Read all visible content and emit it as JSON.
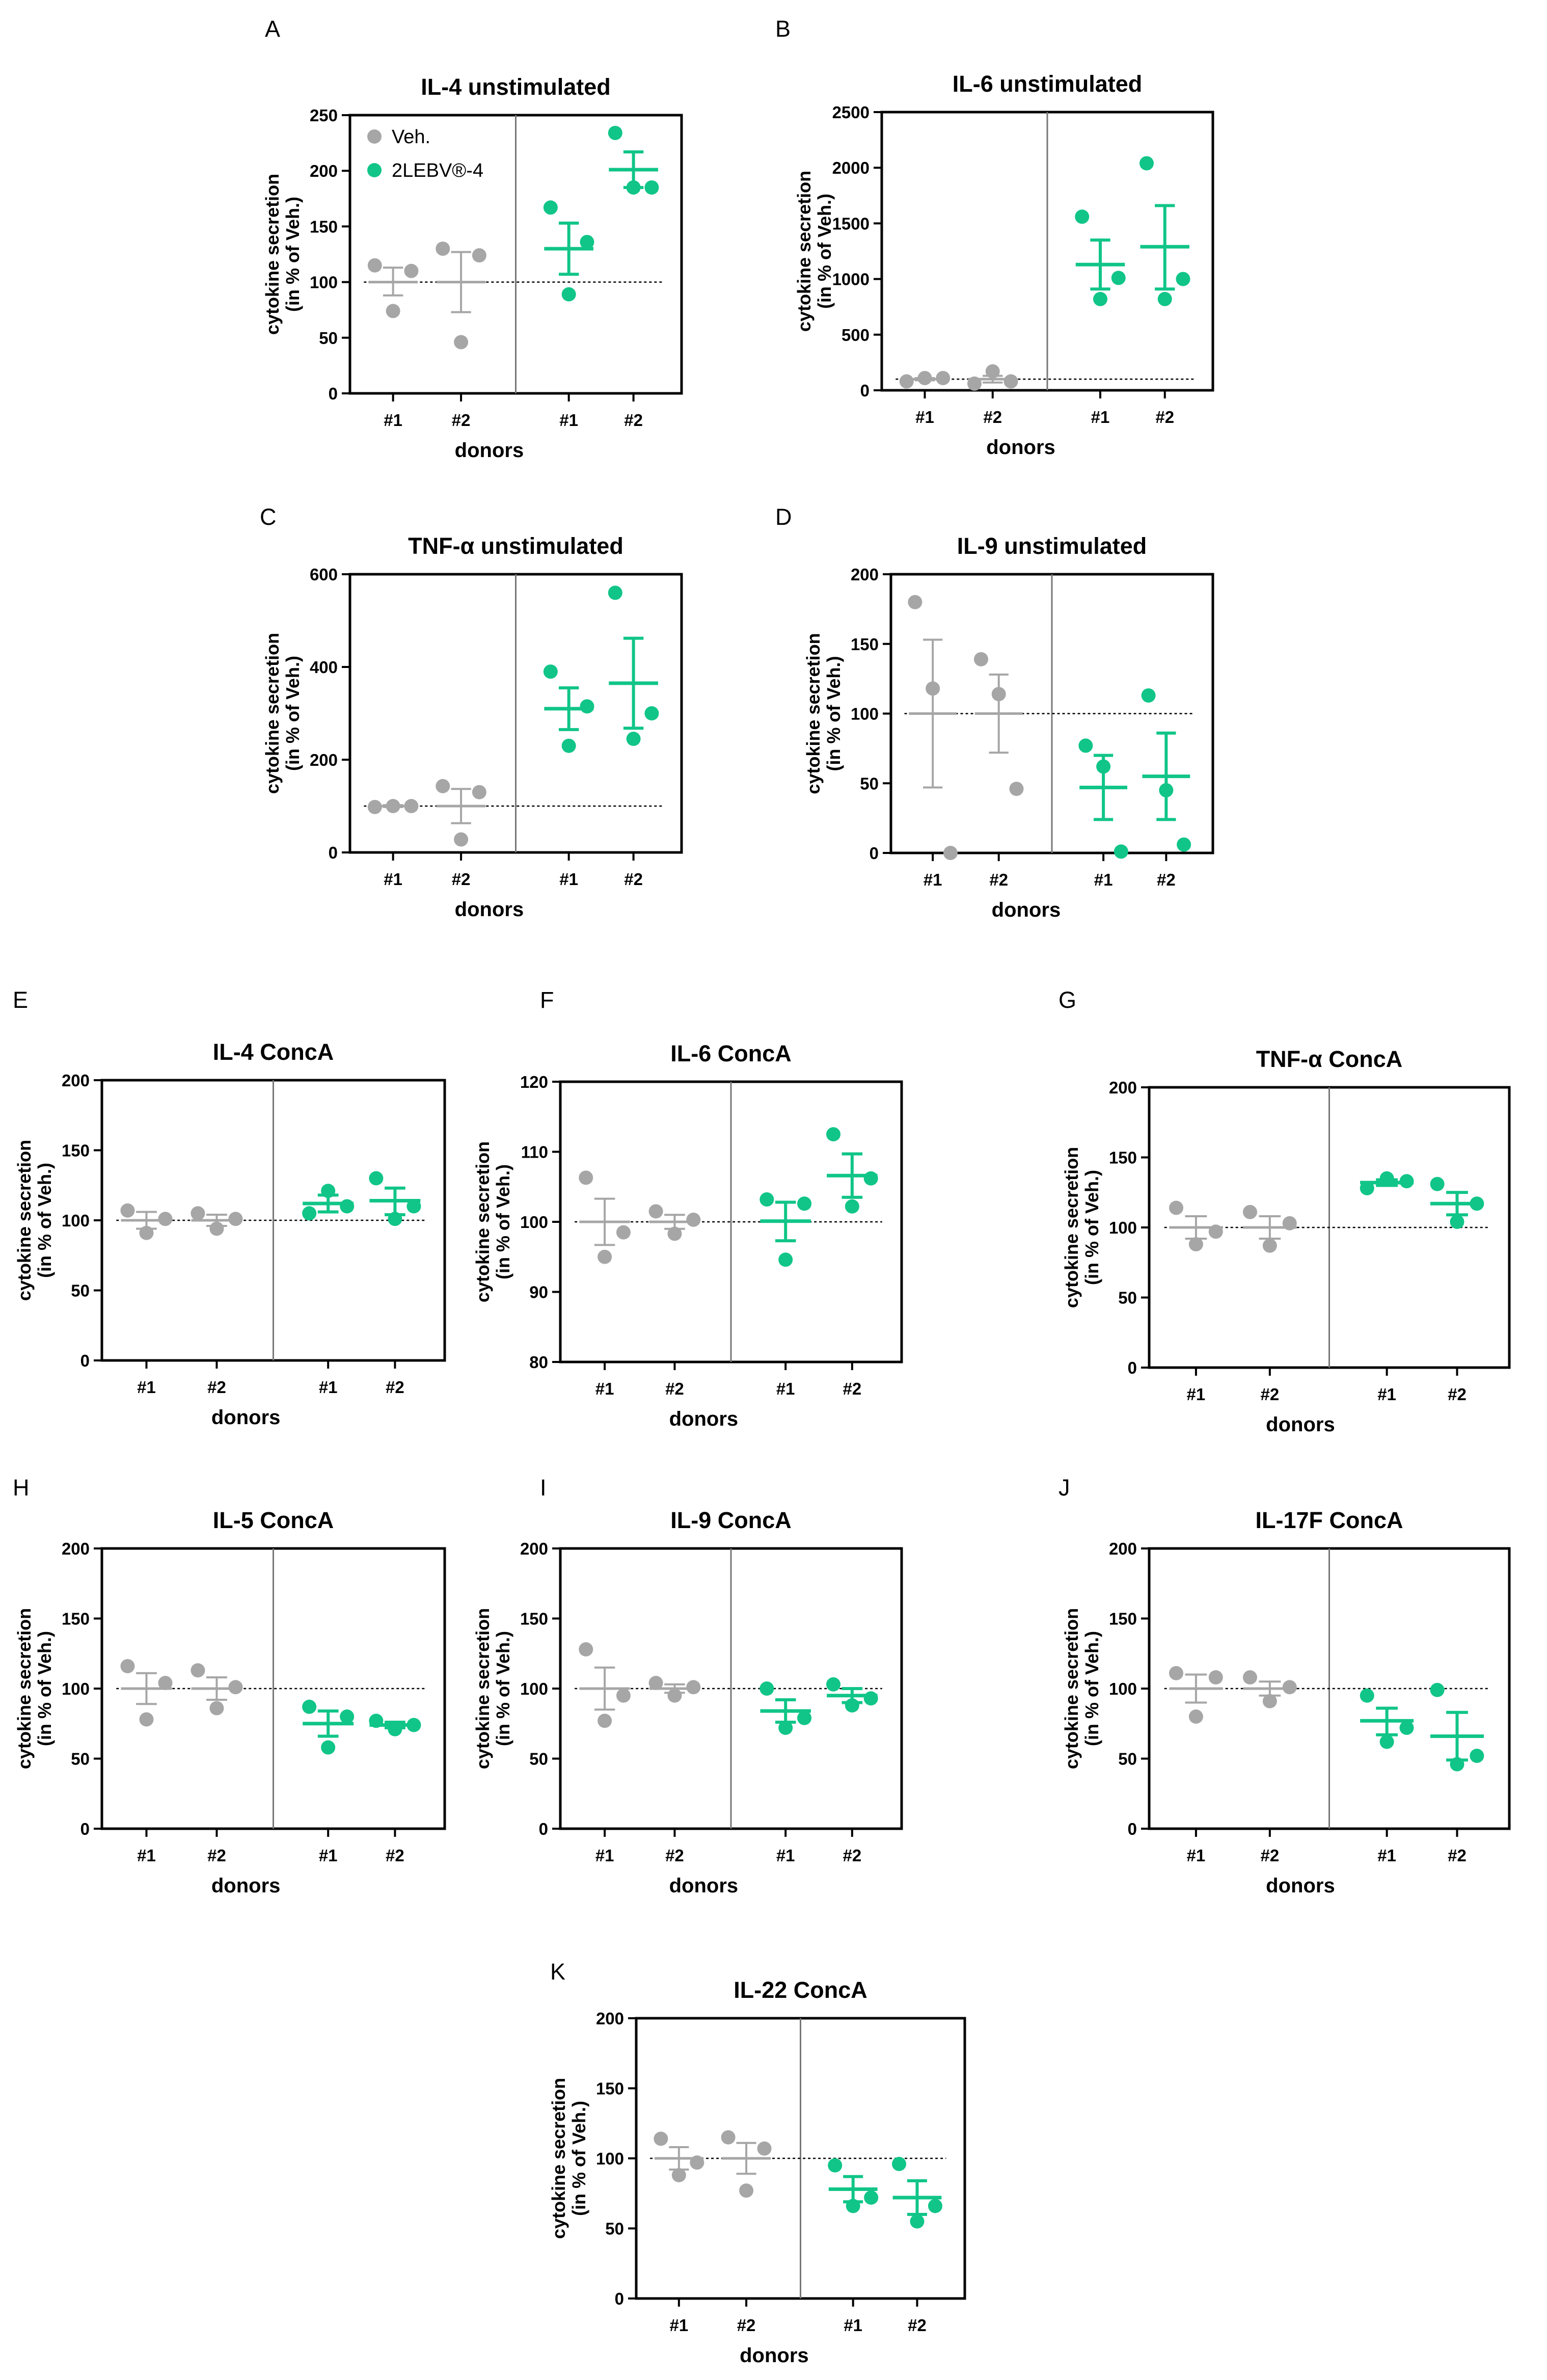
{
  "figure": {
    "legend": {
      "items": [
        {
          "label": "Veh.",
          "color": "#a6a6a6"
        },
        {
          "label": "2LEBV®-4",
          "color": "#10c587"
        }
      ]
    },
    "colors": {
      "veh": "#a6a6a6",
      "treat": "#10c587"
    }
  },
  "chart_data": [
    {
      "panel": "A",
      "type": "scatter",
      "title": "IL-4 unstimulated",
      "ylabel": [
        "cytokine secretion",
        "(in % of Veh.)"
      ],
      "xlabel": "donors",
      "ylim": [
        0,
        250
      ],
      "yticks": [
        0,
        50,
        100,
        150,
        200,
        250
      ],
      "categories": [
        "#1",
        "#2",
        "#1",
        "#2"
      ],
      "has_legend": true,
      "series": [
        {
          "name": "Veh.",
          "groups": [
            {
              "points": [
                115,
                74,
                110
              ],
              "mean": 100,
              "err": [
                88,
                113
              ]
            },
            {
              "points": [
                130,
                46,
                124
              ],
              "mean": 100,
              "err": [
                73,
                127
              ]
            }
          ]
        },
        {
          "name": "2LEBV®-4",
          "groups": [
            {
              "points": [
                167,
                89,
                136
              ],
              "mean": 130,
              "err": [
                107,
                153
              ]
            },
            {
              "points": [
                234,
                185,
                185
              ],
              "mean": 201,
              "err": [
                185,
                217
              ]
            }
          ]
        }
      ]
    },
    {
      "panel": "B",
      "type": "scatter",
      "title": "IL-6 unstimulated",
      "ylabel": [
        "cytokine secretion",
        "(in % of Veh.)"
      ],
      "xlabel": "donors",
      "ylim": [
        0,
        2500
      ],
      "yticks": [
        0,
        500,
        1000,
        1500,
        2000,
        2500
      ],
      "categories": [
        "#1",
        "#2",
        "#1",
        "#2"
      ],
      "series": [
        {
          "name": "Veh.",
          "groups": [
            {
              "points": [
                80,
                110,
                110
              ],
              "mean": 100,
              "err": [
                90,
                110
              ]
            },
            {
              "points": [
                60,
                170,
                80
              ],
              "mean": 100,
              "err": [
                70,
                130
              ]
            }
          ]
        },
        {
          "name": "2LEBV®-4",
          "groups": [
            {
              "points": [
                1560,
                820,
                1010
              ],
              "mean": 1130,
              "err": [
                910,
                1350
              ]
            },
            {
              "points": [
                2040,
                820,
                1000
              ],
              "mean": 1290,
              "err": [
                910,
                1660
              ]
            }
          ]
        }
      ]
    },
    {
      "panel": "C",
      "type": "scatter",
      "title": "TNF-α unstimulated",
      "ylabel": [
        "cytokine secretion",
        "(in % of Veh.)"
      ],
      "xlabel": "donors",
      "ylim": [
        0,
        600
      ],
      "yticks": [
        0,
        200,
        400,
        600
      ],
      "categories": [
        "#1",
        "#2",
        "#1",
        "#2"
      ],
      "series": [
        {
          "name": "Veh.",
          "groups": [
            {
              "points": [
                98,
                100,
                100
              ],
              "mean": 100,
              "err": [
                98,
                102
              ]
            },
            {
              "points": [
                143,
                28,
                130
              ],
              "mean": 100,
              "err": [
                63,
                137
              ]
            }
          ]
        },
        {
          "name": "2LEBV®-4",
          "groups": [
            {
              "points": [
                390,
                230,
                315
              ],
              "mean": 310,
              "err": [
                265,
                355
              ]
            },
            {
              "points": [
                560,
                245,
                300
              ],
              "mean": 365,
              "err": [
                268,
                462
              ]
            }
          ]
        }
      ]
    },
    {
      "panel": "D",
      "type": "scatter",
      "title": "IL-9 unstimulated",
      "ylabel": [
        "cytokine secretion",
        "(in % of Veh.)"
      ],
      "xlabel": "donors",
      "ylim": [
        0,
        200
      ],
      "yticks": [
        0,
        50,
        100,
        150,
        200
      ],
      "categories": [
        "#1",
        "#2",
        "#1",
        "#2"
      ],
      "series": [
        {
          "name": "Veh.",
          "groups": [
            {
              "points": [
                180,
                118,
                0
              ],
              "mean": 100,
              "err": [
                47,
                153
              ]
            },
            {
              "points": [
                139,
                114,
                46
              ],
              "mean": 100,
              "err": [
                72,
                128
              ]
            }
          ]
        },
        {
          "name": "2LEBV®-4",
          "groups": [
            {
              "points": [
                77,
                62,
                1
              ],
              "mean": 47,
              "err": [
                24,
                70
              ]
            },
            {
              "points": [
                113,
                45,
                6
              ],
              "mean": 55,
              "err": [
                24,
                86
              ]
            }
          ]
        }
      ]
    },
    {
      "panel": "E",
      "type": "scatter",
      "title": "IL-4 ConcA",
      "ylabel": [
        "cytokine secretion",
        "(in % of Veh.)"
      ],
      "xlabel": "donors",
      "ylim": [
        0,
        200
      ],
      "yticks": [
        0,
        50,
        100,
        150,
        200
      ],
      "categories": [
        "#1",
        "#2",
        "#1",
        "#2"
      ],
      "series": [
        {
          "name": "Veh.",
          "groups": [
            {
              "points": [
                107,
                91,
                101
              ],
              "mean": 100,
              "err": [
                94,
                106
              ]
            },
            {
              "points": [
                105,
                94,
                101
              ],
              "mean": 100,
              "err": [
                96,
                104
              ]
            }
          ]
        },
        {
          "name": "2LEBV®-4",
          "groups": [
            {
              "points": [
                105,
                121,
                110
              ],
              "mean": 112,
              "err": [
                106,
                118
              ]
            },
            {
              "points": [
                130,
                101,
                110
              ],
              "mean": 114,
              "err": [
                104,
                123
              ]
            }
          ]
        }
      ]
    },
    {
      "panel": "F",
      "type": "scatter",
      "title": "IL-6 ConcA",
      "ylabel": [
        "cytokine secretion",
        "(in % of Veh.)"
      ],
      "xlabel": "donors",
      "ylim": [
        80,
        120
      ],
      "yticks": [
        80,
        90,
        100,
        110,
        120
      ],
      "categories": [
        "#1",
        "#2",
        "#1",
        "#2"
      ],
      "series": [
        {
          "name": "Veh.",
          "groups": [
            {
              "points": [
                106.3,
                95,
                98.5
              ],
              "mean": 100,
              "err": [
                96.7,
                103.3
              ]
            },
            {
              "points": [
                101.5,
                98.3,
                100.3
              ],
              "mean": 100,
              "err": [
                99,
                101
              ]
            }
          ]
        },
        {
          "name": "2LEBV®-4",
          "groups": [
            {
              "points": [
                103.2,
                94.6,
                102.6
              ],
              "mean": 100.1,
              "err": [
                97.3,
                102.8
              ]
            },
            {
              "points": [
                112.5,
                102.2,
                106.2
              ],
              "mean": 106.6,
              "err": [
                103.5,
                109.7
              ]
            }
          ]
        }
      ]
    },
    {
      "panel": "G",
      "type": "scatter",
      "title": "TNF-α ConcA",
      "ylabel": [
        "cytokine secretion",
        "(in % of Veh.)"
      ],
      "xlabel": "donors",
      "ylim": [
        0,
        200
      ],
      "yticks": [
        0,
        50,
        100,
        150,
        200
      ],
      "categories": [
        "#1",
        "#2",
        "#1",
        "#2"
      ],
      "series": [
        {
          "name": "Veh.",
          "groups": [
            {
              "points": [
                114,
                88,
                97
              ],
              "mean": 100,
              "err": [
                92,
                108
              ]
            },
            {
              "points": [
                111,
                87,
                103
              ],
              "mean": 100,
              "err": [
                92,
                108
              ]
            }
          ]
        },
        {
          "name": "2LEBV®-4",
          "groups": [
            {
              "points": [
                128,
                135,
                133
              ],
              "mean": 132,
              "err": [
                130,
                134
              ]
            },
            {
              "points": [
                131,
                104,
                117
              ],
              "mean": 117,
              "err": [
                109,
                125
              ]
            }
          ]
        }
      ]
    },
    {
      "panel": "H",
      "type": "scatter",
      "title": "IL-5 ConcA",
      "ylabel": [
        "cytokine secretion",
        "(in % of Veh.)"
      ],
      "xlabel": "donors",
      "ylim": [
        0,
        200
      ],
      "yticks": [
        0,
        50,
        100,
        150,
        200
      ],
      "categories": [
        "#1",
        "#2",
        "#1",
        "#2"
      ],
      "series": [
        {
          "name": "Veh.",
          "groups": [
            {
              "points": [
                116,
                78,
                104
              ],
              "mean": 100,
              "err": [
                89,
                111
              ]
            },
            {
              "points": [
                113,
                86,
                101
              ],
              "mean": 100,
              "err": [
                92,
                108
              ]
            }
          ]
        },
        {
          "name": "2LEBV®-4",
          "groups": [
            {
              "points": [
                87,
                58,
                80
              ],
              "mean": 75,
              "err": [
                66,
                84
              ]
            },
            {
              "points": [
                77,
                71,
                74
              ],
              "mean": 74,
              "err": [
                72,
                76
              ]
            }
          ]
        }
      ]
    },
    {
      "panel": "I",
      "type": "scatter",
      "title": "IL-9 ConcA",
      "ylabel": [
        "cytokine secretion",
        "(in % of Veh.)"
      ],
      "xlabel": "donors",
      "ylim": [
        0,
        200
      ],
      "yticks": [
        0,
        50,
        100,
        150,
        200
      ],
      "categories": [
        "#1",
        "#2",
        "#1",
        "#2"
      ],
      "series": [
        {
          "name": "Veh.",
          "groups": [
            {
              "points": [
                128,
                77,
                95
              ],
              "mean": 100,
              "err": [
                85,
                115
              ]
            },
            {
              "points": [
                104,
                95,
                101
              ],
              "mean": 100,
              "err": [
                97,
                103
              ]
            }
          ]
        },
        {
          "name": "2LEBV®-4",
          "groups": [
            {
              "points": [
                100,
                72,
                79
              ],
              "mean": 84,
              "err": [
                76,
                92
              ]
            },
            {
              "points": [
                103,
                88,
                93
              ],
              "mean": 95,
              "err": [
                90,
                100
              ]
            }
          ]
        }
      ]
    },
    {
      "panel": "J",
      "type": "scatter",
      "title": "IL-17F ConcA",
      "ylabel": [
        "cytokine secretion",
        "(in % of Veh.)"
      ],
      "xlabel": "donors",
      "ylim": [
        0,
        200
      ],
      "yticks": [
        0,
        50,
        100,
        150,
        200
      ],
      "categories": [
        "#1",
        "#2",
        "#1",
        "#2"
      ],
      "series": [
        {
          "name": "Veh.",
          "groups": [
            {
              "points": [
                111,
                80,
                108
              ],
              "mean": 100,
              "err": [
                90,
                110
              ]
            },
            {
              "points": [
                108,
                91,
                101
              ],
              "mean": 100,
              "err": [
                95,
                105
              ]
            }
          ]
        },
        {
          "name": "2LEBV®-4",
          "groups": [
            {
              "points": [
                95,
                62,
                72
              ],
              "mean": 77,
              "err": [
                67,
                86
              ]
            },
            {
              "points": [
                99,
                46,
                52
              ],
              "mean": 66,
              "err": [
                49,
                83
              ]
            }
          ]
        }
      ]
    },
    {
      "panel": "K",
      "type": "scatter",
      "title": "IL-22 ConcA",
      "ylabel": [
        "cytokine secretion",
        "(in % of Veh.)"
      ],
      "xlabel": "donors",
      "ylim": [
        0,
        200
      ],
      "yticks": [
        0,
        50,
        100,
        150,
        200
      ],
      "categories": [
        "#1",
        "#2",
        "#1",
        "#2"
      ],
      "series": [
        {
          "name": "Veh.",
          "groups": [
            {
              "points": [
                114,
                88,
                97
              ],
              "mean": 100,
              "err": [
                92,
                108
              ]
            },
            {
              "points": [
                115,
                77,
                107
              ],
              "mean": 100,
              "err": [
                89,
                111
              ]
            }
          ]
        },
        {
          "name": "2LEBV®-4",
          "groups": [
            {
              "points": [
                95,
                66,
                72
              ],
              "mean": 78,
              "err": [
                69,
                87
              ]
            },
            {
              "points": [
                96,
                55,
                66
              ],
              "mean": 72,
              "err": [
                60,
                84
              ]
            }
          ]
        }
      ]
    }
  ]
}
